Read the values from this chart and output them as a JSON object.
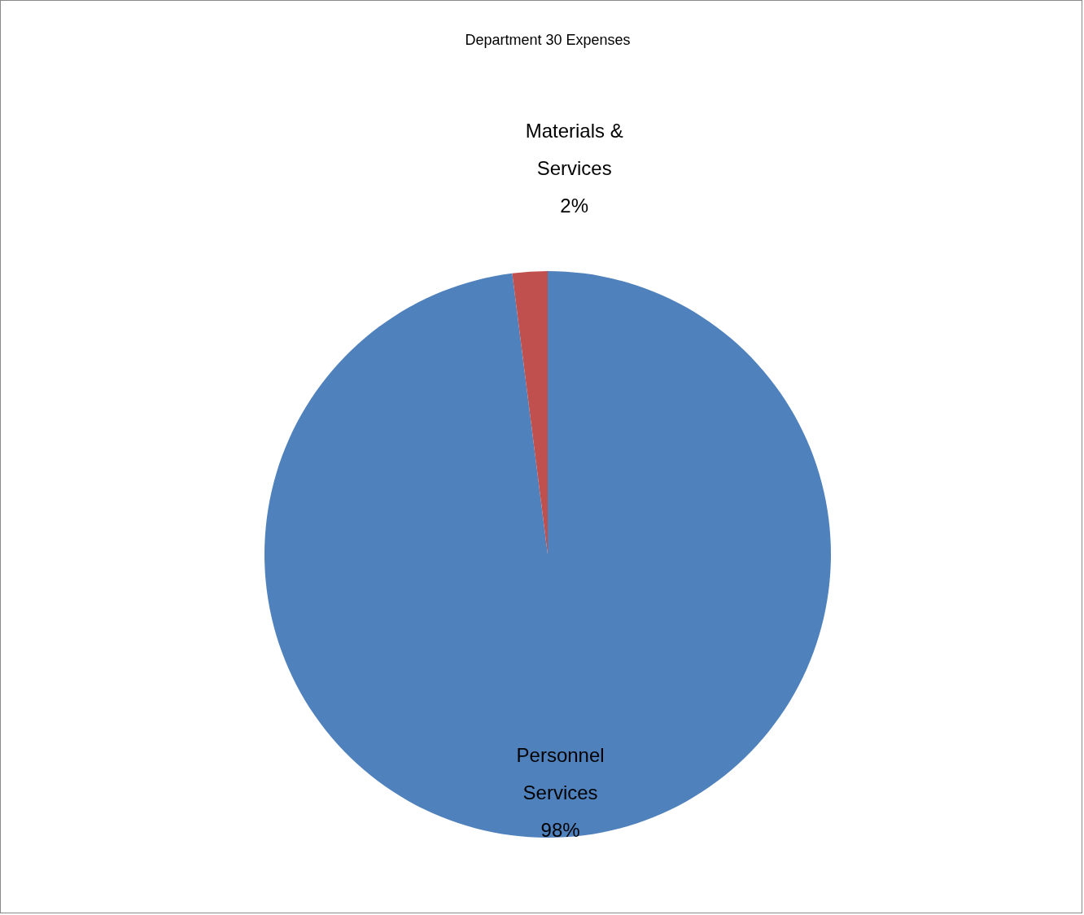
{
  "chart_data": {
    "type": "pie",
    "title": "Department 30 Expenses",
    "categories": [
      "Personnel Services",
      "Materials & Services"
    ],
    "values": [
      98,
      2
    ],
    "value_labels": [
      "98%",
      "2%"
    ],
    "colors": [
      "#4f81bd",
      "#c0504d"
    ]
  }
}
